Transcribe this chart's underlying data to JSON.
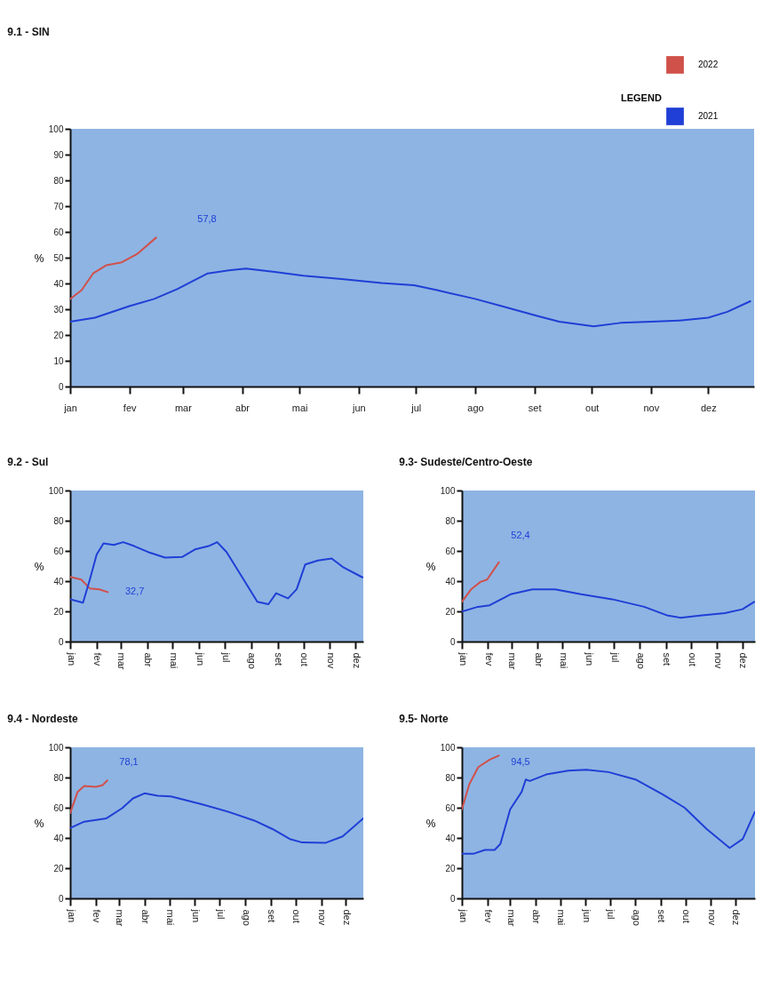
{
  "chart_data": [
    {
      "type": "line",
      "title": "9.1 - SIN",
      "ylabel": "%",
      "legend": "top right",
      "legend_title": "LEGEND",
      "xlim": [
        "--01-01",
        "--12-25"
      ],
      "xticks": [
        {
          "value": "--01-01",
          "label": "jan"
        },
        {
          "value": "--02-01",
          "label": "fev"
        },
        {
          "value": "--03-01",
          "label": "mar"
        },
        {
          "value": "--04-01",
          "label": "abr"
        },
        {
          "value": "--05-01",
          "label": "mai"
        },
        {
          "value": "--06-01",
          "label": "jun"
        },
        {
          "value": "--07-01",
          "label": "jul"
        },
        {
          "value": "--08-01",
          "label": "ago"
        },
        {
          "value": "--09-01",
          "label": "set"
        },
        {
          "value": "--10-01",
          "label": "out"
        },
        {
          "value": "--11-01",
          "label": "nov"
        },
        {
          "value": "--12-01",
          "label": "dez"
        }
      ],
      "ylim": [
        0,
        100
      ],
      "yticks": [
        0,
        10,
        20,
        30,
        40,
        50,
        60,
        70,
        80,
        90,
        100
      ],
      "series": [
        {
          "name": "2022",
          "color": "#d0504a",
          "x": [
            "--01-01",
            "--01-07",
            "--01-13",
            "--01-20",
            "--01-28",
            "--02-05",
            "--02-15"
          ],
          "values": [
            34,
            37.4,
            43.9,
            47.1,
            48.2,
            51.4,
            57.8
          ]
        },
        {
          "name": "2021",
          "color": "#1f3fd6",
          "x": [
            "--01-01",
            "--01-14",
            "--02-01",
            "--02-14",
            "--02-26",
            "--03-14",
            "--03-26",
            "--04-03",
            "--04-18",
            "--05-03",
            "--05-23",
            "--06-13",
            "--06-30",
            "--07-12",
            "--08-01",
            "--08-17",
            "--09-02",
            "--09-14",
            "--10-02",
            "--10-16",
            "--11-01",
            "--11-16",
            "--12-01",
            "--12-11",
            "--12-23"
          ],
          "values": [
            25.2,
            26.7,
            31.2,
            34,
            37.8,
            43.9,
            45.2,
            45.8,
            44.5,
            43,
            41.7,
            40.2,
            39.3,
            37.4,
            34,
            30.8,
            27.5,
            25.2,
            23.4,
            24.7,
            25.2,
            25.6,
            26.7,
            29,
            33.1
          ]
        }
      ],
      "annotations": [
        "57,8"
      ]
    },
    {
      "type": "line",
      "title": "9.2 - Sul",
      "ylabel": "%",
      "xlim": [
        "--01-01",
        "--12-10"
      ],
      "xticks": [
        {
          "value": "--01-01",
          "label": "jan"
        },
        {
          "value": "--02-01",
          "label": "fev"
        },
        {
          "value": "--03-01",
          "label": "mar"
        },
        {
          "value": "--04-01",
          "label": "abr"
        },
        {
          "value": "--05-01",
          "label": "mai"
        },
        {
          "value": "--06-01",
          "label": "jun"
        },
        {
          "value": "--07-01",
          "label": "jul"
        },
        {
          "value": "--08-01",
          "label": "ago"
        },
        {
          "value": "--09-01",
          "label": "set"
        },
        {
          "value": "--10-01",
          "label": "out"
        },
        {
          "value": "--11-01",
          "label": "nov"
        },
        {
          "value": "--12-01",
          "label": "dez"
        }
      ],
      "ylim": [
        0,
        100
      ],
      "yticks": [
        0,
        20,
        40,
        60,
        80,
        100
      ],
      "series": [
        {
          "color": "#d0504a",
          "x": [
            "--01-01",
            "--01-14",
            "--01-24",
            "--02-04",
            "--02-14"
          ],
          "values": [
            42.8,
            41,
            35.2,
            34.6,
            32.7
          ]
        },
        {
          "color": "#1f3fd6",
          "x": [
            "--01-01",
            "--01-16",
            "--01-24",
            "--02-01",
            "--02-09",
            "--02-21",
            "--03-04",
            "--03-17",
            "--04-02",
            "--04-22",
            "--05-12",
            "--05-27",
            "--06-12",
            "--06-22",
            "--07-03",
            "--07-23",
            "--08-08",
            "--08-21",
            "--08-30",
            "--09-13",
            "--09-23",
            "--10-03",
            "--10-18",
            "--11-03",
            "--11-16",
            "--12-09"
          ],
          "values": [
            28,
            25.7,
            41,
            57.6,
            65,
            64,
            65.8,
            63.2,
            59.3,
            55.6,
            56,
            61,
            63.2,
            65.8,
            59.3,
            41,
            26.3,
            24.7,
            32,
            28.6,
            34.6,
            51,
            53.7,
            55,
            49.4,
            42.5
          ]
        }
      ],
      "annotations": [
        "32,7"
      ]
    },
    {
      "type": "line",
      "title": "9.3- Sudeste/Centro-Oeste",
      "ylabel": "%",
      "xlim": [
        "--01-01",
        "--12-16"
      ],
      "xticks": [
        {
          "value": "--01-01",
          "label": "jan"
        },
        {
          "value": "--02-01",
          "label": "fev"
        },
        {
          "value": "--03-01",
          "label": "mar"
        },
        {
          "value": "--04-01",
          "label": "abr"
        },
        {
          "value": "--05-01",
          "label": "mai"
        },
        {
          "value": "--06-01",
          "label": "jun"
        },
        {
          "value": "--07-01",
          "label": "jul"
        },
        {
          "value": "--08-01",
          "label": "ago"
        },
        {
          "value": "--09-01",
          "label": "set"
        },
        {
          "value": "--10-01",
          "label": "out"
        },
        {
          "value": "--11-01",
          "label": "nov"
        },
        {
          "value": "--12-01",
          "label": "dez"
        }
      ],
      "ylim": [
        0,
        100
      ],
      "yticks": [
        0,
        20,
        40,
        60,
        80,
        100
      ],
      "series": [
        {
          "color": "#d0504a",
          "x": [
            "--01-01",
            "--01-12",
            "--01-23",
            "--01-31",
            "--02-14"
          ],
          "values": [
            26.3,
            34.6,
            39.5,
            41,
            52.4
          ]
        },
        {
          "color": "#1f3fd6",
          "x": [
            "--01-01",
            "--01-20",
            "--02-03",
            "--02-28",
            "--03-26",
            "--04-22",
            "--05-23",
            "--06-29",
            "--08-06",
            "--09-02",
            "--09-18",
            "--10-14",
            "--11-10",
            "--12-01",
            "--12-15"
          ],
          "values": [
            19.8,
            23,
            24,
            31.3,
            34.6,
            34.6,
            31.3,
            28,
            23,
            17.4,
            15.8,
            17.4,
            18.8,
            21.4,
            26.3
          ]
        }
      ],
      "annotations": [
        "52,4"
      ]
    },
    {
      "type": "line",
      "title": "9.4 - Nordeste",
      "ylabel": "%",
      "xlim": [
        "--01-01",
        "--12-22"
      ],
      "xticks": [
        {
          "value": "--01-01",
          "label": "jan"
        },
        {
          "value": "--02-01",
          "label": "fev"
        },
        {
          "value": "--03-01",
          "label": "mar"
        },
        {
          "value": "--04-01",
          "label": "abr"
        },
        {
          "value": "--05-01",
          "label": "mai"
        },
        {
          "value": "--06-01",
          "label": "jun"
        },
        {
          "value": "--07-01",
          "label": "jul"
        },
        {
          "value": "--08-01",
          "label": "ago"
        },
        {
          "value": "--09-01",
          "label": "set"
        },
        {
          "value": "--10-01",
          "label": "out"
        },
        {
          "value": "--11-01",
          "label": "nov"
        },
        {
          "value": "--12-01",
          "label": "dez"
        }
      ],
      "ylim": [
        0,
        100
      ],
      "yticks": [
        0,
        20,
        40,
        60,
        80,
        100
      ],
      "series": [
        {
          "color": "#d0504a",
          "x": [
            "--01-01",
            "--01-10",
            "--01-18",
            "--02-01",
            "--02-09",
            "--02-15"
          ],
          "values": [
            56.4,
            70.5,
            74.4,
            73.8,
            74.8,
            78.1
          ]
        },
        {
          "color": "#1f3fd6",
          "x": [
            "--01-01",
            "--01-18",
            "--02-14",
            "--03-05",
            "--03-18",
            "--04-01",
            "--04-17",
            "--05-03",
            "--06-09",
            "--07-11",
            "--08-12",
            "--09-03",
            "--09-24",
            "--10-09",
            "--11-06",
            "--11-27",
            "--12-22"
          ],
          "values": [
            46.6,
            50.8,
            53,
            59.7,
            66.2,
            69.5,
            67.9,
            67.5,
            62.3,
            57.4,
            51.5,
            45.9,
            39.3,
            37,
            36.7,
            41,
            53
          ]
        }
      ],
      "annotations": [
        "78,1"
      ]
    },
    {
      "type": "line",
      "title": "9.5- Norte",
      "ylabel": "%",
      "xlim": [
        "--01-01",
        "--12-25"
      ],
      "xticks": [
        {
          "value": "--01-01",
          "label": "jan"
        },
        {
          "value": "--02-01",
          "label": "fev"
        },
        {
          "value": "--03-01",
          "label": "mar"
        },
        {
          "value": "--04-01",
          "label": "abr"
        },
        {
          "value": "--05-01",
          "label": "mai"
        },
        {
          "value": "--06-01",
          "label": "jun"
        },
        {
          "value": "--07-01",
          "label": "jul"
        },
        {
          "value": "--08-01",
          "label": "ago"
        },
        {
          "value": "--09-01",
          "label": "set"
        },
        {
          "value": "--10-01",
          "label": "out"
        },
        {
          "value": "--11-01",
          "label": "nov"
        },
        {
          "value": "--12-01",
          "label": "dez"
        }
      ],
      "ylim": [
        0,
        100
      ],
      "yticks": [
        0,
        20,
        40,
        60,
        80,
        100
      ],
      "series": [
        {
          "color": "#d0504a",
          "x": [
            "--01-01",
            "--01-10",
            "--01-21",
            "--02-04",
            "--02-15"
          ],
          "values": [
            59,
            75.4,
            86.9,
            91.8,
            94.5
          ]
        },
        {
          "color": "#1f3fd6",
          "x": [
            "--01-01",
            "--01-15",
            "--01-29",
            "--02-10",
            "--02-17",
            "--03-01",
            "--03-15",
            "--03-20",
            "--03-25",
            "--04-14",
            "--05-11",
            "--06-02",
            "--06-29",
            "--08-01",
            "--09-03",
            "--09-30",
            "--10-27",
            "--11-24",
            "--12-10",
            "--12-25"
          ],
          "values": [
            29.5,
            29.5,
            32.1,
            32.1,
            36,
            59,
            70.5,
            78.7,
            77.7,
            82,
            84.6,
            85.2,
            83.6,
            78.7,
            68.9,
            60,
            45.9,
            33.4,
            39.3,
            57.4
          ]
        }
      ],
      "annotations": [
        "94,5"
      ]
    }
  ]
}
